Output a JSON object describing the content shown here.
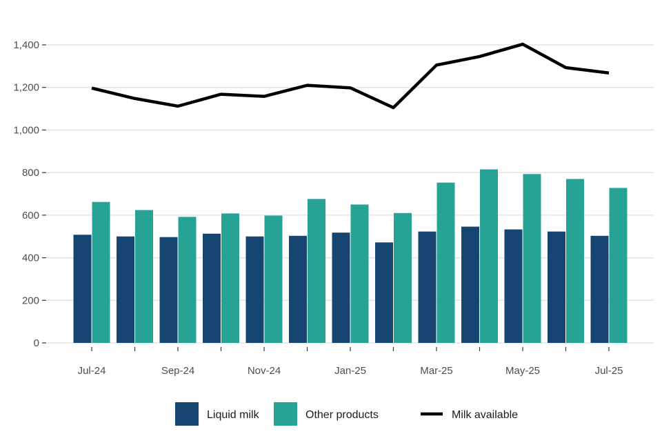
{
  "chart_data": {
    "type": "bar",
    "title": "",
    "xlabel": "",
    "ylabel": "",
    "categories": [
      "Jul-24",
      "Aug-24",
      "Sep-24",
      "Oct-24",
      "Nov-24",
      "Dec-24",
      "Jan-25",
      "Feb-25",
      "Mar-25",
      "Apr-25",
      "May-25",
      "Jun-25",
      "Jul-25"
    ],
    "x_tick_labels": [
      "Jul-24",
      "",
      "Sep-24",
      "",
      "Nov-24",
      "",
      "Jan-25",
      "",
      "Mar-25",
      "",
      "May-25",
      "",
      "Jul-25"
    ],
    "series": [
      {
        "name": "Liquid milk",
        "kind": "bar",
        "color": "#154570",
        "values": [
          508,
          500,
          497,
          513,
          500,
          503,
          518,
          472,
          523,
          546,
          533,
          523,
          503
        ]
      },
      {
        "name": "Other products",
        "kind": "bar",
        "color": "#27a396",
        "values": [
          662,
          624,
          592,
          608,
          598,
          676,
          650,
          610,
          753,
          815,
          793,
          770,
          728
        ]
      },
      {
        "name": "Milk available",
        "kind": "line",
        "color": "#000000",
        "values": [
          1197,
          1148,
          1112,
          1168,
          1158,
          1210,
          1198,
          1105,
          1305,
          1345,
          1403,
          1293,
          1268
        ]
      }
    ],
    "ylim": [
      0,
      1500
    ],
    "y_ticks": [
      "0",
      "200",
      "400",
      "600",
      "800",
      "1,000",
      "1,200",
      "1,400"
    ],
    "y_tick_values": [
      0,
      200,
      400,
      600,
      800,
      1000,
      1200,
      1400
    ],
    "grid": "horizontal",
    "legend_placement": "bottom"
  }
}
